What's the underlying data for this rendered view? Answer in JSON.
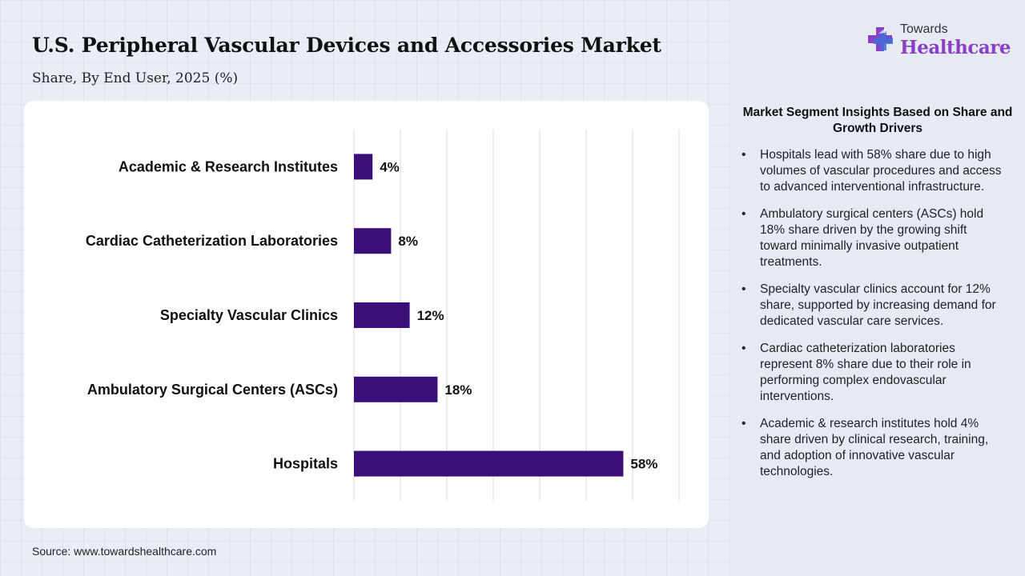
{
  "header": {
    "title": "U.S. Peripheral Vascular Devices and Accessories Market",
    "subtitle": "Share, By End User, 2025 (%)"
  },
  "brand": {
    "top": "Towards",
    "bottom": "Healthcare",
    "icon": "medical-cross-icon",
    "colors": {
      "purple": "#8b3fc6",
      "blue": "#3f6fd8"
    }
  },
  "chart_data": {
    "type": "bar",
    "orientation": "horizontal",
    "categories": [
      "Academic & Research Institutes",
      "Cardiac Catheterization Laboratories",
      "Specialty Vascular Clinics",
      "Ambulatory Surgical Centers (ASCs)",
      "Hospitals"
    ],
    "values": [
      4,
      8,
      12,
      18,
      58
    ],
    "value_labels": [
      "4%",
      "8%",
      "12%",
      "18%",
      "58%"
    ],
    "xlim": [
      0,
      70
    ],
    "grid": "vertical",
    "bar_color": "#3b0f7a"
  },
  "panel": {
    "heading": "Market Segment Insights Based on Share and Growth Drivers",
    "bullet": "•",
    "insights": [
      "Hospitals lead with 58% share due to high volumes of vascular procedures and access to advanced interventional infrastructure.",
      "Ambulatory surgical centers (ASCs) hold 18% share driven by the growing shift toward minimally invasive outpatient treatments.",
      "Specialty vascular clinics account for 12% share, supported by increasing demand for dedicated vascular care services.",
      "Cardiac catheterization laboratories represent 8% share due to their role in performing complex endovascular interventions.",
      "Academic & research institutes hold 4% share driven by clinical research, training, and adoption of innovative vascular technologies."
    ]
  },
  "footer": {
    "source": "Source: www.towardshealthcare.com"
  }
}
